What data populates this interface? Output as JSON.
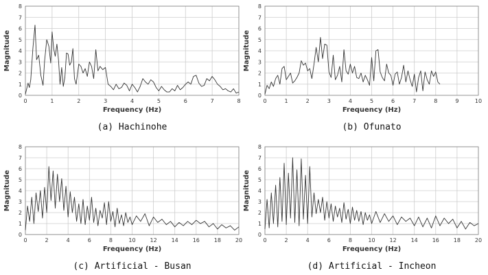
{
  "chart_data": [
    {
      "type": "line",
      "caption": "(a) Hachinohe",
      "xlabel": "Frequency (Hz)",
      "ylabel": "Magnitude",
      "xlim": [
        0,
        8
      ],
      "ylim": [
        0,
        8
      ],
      "xticks": [
        0,
        1,
        2,
        3,
        4,
        5,
        6,
        7,
        8
      ],
      "yticks": [
        0,
        1,
        2,
        3,
        4,
        5,
        6,
        7,
        8
      ],
      "grid": true,
      "series": [
        {
          "x": [
            0,
            0.1,
            0.15,
            0.2,
            0.28,
            0.36,
            0.42,
            0.5,
            0.58,
            0.66,
            0.72,
            0.8,
            0.88,
            0.95,
            1.0,
            1.06,
            1.12,
            1.18,
            1.24,
            1.3,
            1.36,
            1.42,
            1.48,
            1.54,
            1.6,
            1.66,
            1.72,
            1.78,
            1.84,
            1.9,
            2.0,
            2.08,
            2.16,
            2.24,
            2.32,
            2.4,
            2.48,
            2.56,
            2.64,
            2.72,
            2.8,
            2.9,
            3.0,
            3.1,
            3.2,
            3.3,
            3.4,
            3.5,
            3.6,
            3.7,
            3.8,
            3.9,
            4.0,
            4.1,
            4.2,
            4.3,
            4.4,
            4.5,
            4.6,
            4.7,
            4.8,
            4.9,
            5.0,
            5.1,
            5.2,
            5.3,
            5.4,
            5.5,
            5.6,
            5.7,
            5.8,
            5.9,
            6.0,
            6.1,
            6.2,
            6.3,
            6.4,
            6.5,
            6.6,
            6.7,
            6.8,
            6.9,
            7.0,
            7.1,
            7.2,
            7.3,
            7.4,
            7.5,
            7.6,
            7.7,
            7.8,
            7.9,
            8.0
          ],
          "y": [
            0.1,
            1.1,
            0.7,
            1.4,
            4.2,
            6.3,
            3.2,
            3.6,
            1.8,
            0.9,
            3.1,
            5.0,
            4.4,
            2.9,
            5.7,
            4.2,
            3.5,
            4.6,
            3.2,
            1.0,
            2.5,
            0.8,
            1.6,
            3.8,
            3.7,
            2.7,
            3.0,
            4.2,
            1.5,
            1.0,
            2.8,
            2.6,
            2.0,
            2.4,
            1.7,
            3.0,
            2.6,
            1.5,
            4.1,
            2.2,
            2.6,
            2.3,
            2.5,
            1.0,
            0.8,
            0.5,
            1.0,
            0.6,
            0.7,
            1.1,
            0.9,
            0.4,
            1.0,
            0.7,
            0.3,
            0.8,
            1.5,
            1.2,
            1.0,
            1.4,
            1.2,
            0.7,
            0.4,
            0.8,
            0.5,
            0.3,
            0.3,
            0.6,
            0.4,
            0.9,
            0.5,
            0.7,
            1.0,
            1.2,
            1.0,
            1.7,
            1.8,
            1.1,
            0.8,
            0.9,
            1.5,
            1.3,
            1.7,
            1.4,
            1.0,
            0.8,
            0.5,
            0.6,
            0.4,
            0.3,
            0.6,
            0.2,
            0.3
          ]
        }
      ]
    },
    {
      "type": "line",
      "caption": "(b) Ofunato",
      "xlabel": "Frequency (Hz)",
      "ylabel": "Magnitude",
      "xlim": [
        0,
        10
      ],
      "ylim": [
        0,
        8
      ],
      "xticks": [
        0,
        1,
        2,
        3,
        4,
        5,
        6,
        7,
        8,
        9,
        10
      ],
      "yticks": [
        0,
        1,
        2,
        3,
        4,
        5,
        6,
        7,
        8
      ],
      "grid": true,
      "series": [
        {
          "x": [
            0,
            0.1,
            0.2,
            0.3,
            0.4,
            0.5,
            0.6,
            0.7,
            0.8,
            0.9,
            1.0,
            1.1,
            1.2,
            1.3,
            1.4,
            1.5,
            1.6,
            1.7,
            1.8,
            1.9,
            2.0,
            2.1,
            2.2,
            2.3,
            2.4,
            2.5,
            2.6,
            2.7,
            2.8,
            2.9,
            3.0,
            3.1,
            3.2,
            3.3,
            3.4,
            3.5,
            3.6,
            3.7,
            3.8,
            3.9,
            4.0,
            4.1,
            4.2,
            4.3,
            4.4,
            4.5,
            4.6,
            4.7,
            4.8,
            4.9,
            5.0,
            5.1,
            5.2,
            5.3,
            5.4,
            5.5,
            5.6,
            5.7,
            5.8,
            5.9,
            6.0,
            6.1,
            6.2,
            6.3,
            6.4,
            6.5,
            6.6,
            6.7,
            6.8,
            6.9,
            7.0,
            7.1,
            7.2,
            7.3,
            7.4,
            7.5,
            7.6,
            7.7,
            7.8,
            7.9,
            8.0,
            8.1,
            8.2
          ],
          "y": [
            0.1,
            0.9,
            0.6,
            1.2,
            0.8,
            1.5,
            1.8,
            1.0,
            2.4,
            2.6,
            1.4,
            1.7,
            2.0,
            1.1,
            1.3,
            1.6,
            2.0,
            3.1,
            2.7,
            2.9,
            2.2,
            2.4,
            1.5,
            2.8,
            4.3,
            3.0,
            5.2,
            3.3,
            4.6,
            4.5,
            2.1,
            1.6,
            3.6,
            1.4,
            1.8,
            2.6,
            1.2,
            4.1,
            2.2,
            1.9,
            2.8,
            2.0,
            2.6,
            1.6,
            1.5,
            2.0,
            1.2,
            1.8,
            1.4,
            0.9,
            3.4,
            1.3,
            4.0,
            4.1,
            2.1,
            1.6,
            1.3,
            2.8,
            2.0,
            1.8,
            0.9,
            1.9,
            2.1,
            1.0,
            1.6,
            2.7,
            1.2,
            2.2,
            1.4,
            0.8,
            1.9,
            0.3,
            1.6,
            2.2,
            0.4,
            2.1,
            1.4,
            1.0,
            2.2,
            1.7,
            2.1,
            1.2,
            1.0
          ]
        }
      ]
    },
    {
      "type": "line",
      "caption": "(c) Artificial - Busan",
      "xlabel": "Frequency (Hz)",
      "ylabel": "Magnitude",
      "xlim": [
        0,
        20
      ],
      "ylim": [
        0,
        8
      ],
      "xticks": [
        0,
        2,
        4,
        6,
        8,
        10,
        12,
        14,
        16,
        18,
        20
      ],
      "yticks": [
        0,
        1,
        2,
        3,
        4,
        5,
        6,
        7,
        8
      ],
      "grid": true,
      "series": [
        {
          "x": [
            0,
            0.2,
            0.4,
            0.6,
            0.8,
            1.0,
            1.2,
            1.4,
            1.6,
            1.8,
            2.0,
            2.2,
            2.4,
            2.6,
            2.8,
            3.0,
            3.2,
            3.4,
            3.6,
            3.8,
            4.0,
            4.2,
            4.4,
            4.6,
            4.8,
            5.0,
            5.2,
            5.4,
            5.6,
            5.8,
            6.0,
            6.2,
            6.4,
            6.6,
            6.8,
            7.0,
            7.2,
            7.4,
            7.6,
            7.8,
            8.0,
            8.2,
            8.4,
            8.6,
            8.8,
            9.0,
            9.2,
            9.4,
            9.6,
            9.8,
            10.0,
            10.4,
            10.8,
            11.2,
            11.6,
            12.0,
            12.4,
            12.8,
            13.2,
            13.6,
            14.0,
            14.4,
            14.8,
            15.2,
            15.6,
            16.0,
            16.4,
            16.8,
            17.2,
            17.6,
            18.0,
            18.4,
            18.8,
            19.2,
            19.6,
            20.0
          ],
          "y": [
            0.4,
            2.6,
            1.2,
            3.4,
            1.0,
            3.8,
            2.1,
            4.0,
            1.5,
            4.3,
            2.0,
            6.2,
            3.1,
            5.8,
            2.4,
            5.5,
            3.0,
            5.1,
            2.2,
            4.4,
            1.6,
            3.9,
            2.0,
            3.4,
            1.2,
            2.8,
            1.0,
            3.2,
            0.9,
            2.6,
            1.3,
            3.4,
            1.1,
            2.4,
            0.8,
            2.2,
            1.5,
            2.9,
            0.9,
            3.0,
            1.2,
            2.1,
            0.7,
            2.4,
            1.0,
            1.8,
            0.8,
            2.0,
            1.1,
            1.6,
            0.9,
            1.7,
            1.2,
            1.9,
            0.8,
            1.6,
            1.1,
            1.4,
            0.9,
            1.2,
            0.7,
            1.1,
            0.8,
            1.2,
            0.9,
            1.3,
            1.0,
            1.2,
            0.7,
            1.0,
            0.5,
            0.9,
            0.6,
            0.8,
            0.4,
            0.7
          ]
        }
      ]
    },
    {
      "type": "line",
      "caption": "(d) Artificial - Incheon",
      "xlabel": "Frequency (Hz)",
      "ylabel": "Magnitude",
      "xlim": [
        0,
        20
      ],
      "ylim": [
        0,
        8
      ],
      "xticks": [
        0,
        2,
        4,
        6,
        8,
        10,
        12,
        14,
        16,
        18,
        20
      ],
      "yticks": [
        0,
        1,
        2,
        3,
        4,
        5,
        6,
        7,
        8
      ],
      "grid": true,
      "series": [
        {
          "x": [
            0,
            0.2,
            0.4,
            0.6,
            0.8,
            1.0,
            1.2,
            1.4,
            1.6,
            1.8,
            2.0,
            2.2,
            2.4,
            2.6,
            2.8,
            3.0,
            3.2,
            3.4,
            3.6,
            3.8,
            4.0,
            4.2,
            4.4,
            4.6,
            4.8,
            5.0,
            5.2,
            5.4,
            5.6,
            5.8,
            6.0,
            6.2,
            6.4,
            6.6,
            6.8,
            7.0,
            7.2,
            7.4,
            7.6,
            7.8,
            8.0,
            8.2,
            8.4,
            8.6,
            8.8,
            9.0,
            9.2,
            9.4,
            9.6,
            9.8,
            10.0,
            10.4,
            10.8,
            11.2,
            11.6,
            12.0,
            12.4,
            12.8,
            13.2,
            13.6,
            14.0,
            14.4,
            14.8,
            15.2,
            15.6,
            16.0,
            16.4,
            16.8,
            17.2,
            17.6,
            18.0,
            18.4,
            18.8,
            19.2,
            19.6,
            20.0
          ],
          "y": [
            0.5,
            3.2,
            0.6,
            3.8,
            1.0,
            4.5,
            0.7,
            5.2,
            1.2,
            6.5,
            0.9,
            5.6,
            1.5,
            7.0,
            1.1,
            5.9,
            0.8,
            6.9,
            1.4,
            5.4,
            1.0,
            6.2,
            1.6,
            3.8,
            1.9,
            3.2,
            2.0,
            3.4,
            1.3,
            3.0,
            1.5,
            2.8,
            1.2,
            2.6,
            1.6,
            2.4,
            1.1,
            2.9,
            1.4,
            2.3,
            1.0,
            2.5,
            1.3,
            2.2,
            1.2,
            2.1,
            0.9,
            2.0,
            1.3,
            1.8,
            1.0,
            2.1,
            1.1,
            1.9,
            1.2,
            1.7,
            0.9,
            1.6,
            1.2,
            1.5,
            0.8,
            1.6,
            0.7,
            1.5,
            0.6,
            1.7,
            0.8,
            1.5,
            1.0,
            1.4,
            0.6,
            1.2,
            0.5,
            1.1,
            0.8,
            1.0
          ]
        }
      ]
    }
  ]
}
